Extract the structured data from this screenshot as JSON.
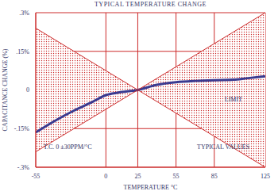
{
  "chart_data": {
    "type": "line",
    "title": "TYPICAL TEMPERATURE CHANGE",
    "x_label": "TEMPERATURE °C",
    "y_label": "CAPACITANCE CHANGE (%)",
    "annotations": [
      "T.C. 0 ±30PPM/°C"
    ],
    "xlim": [
      -55,
      125
    ],
    "xticks": [
      -55,
      0,
      25,
      55,
      85,
      125
    ],
    "ylim": [
      -0.3,
      0.3
    ],
    "yticks": [
      {
        "value": -0.3,
        "label": "-.3%"
      },
      {
        "value": -0.15,
        "label": "-.15%"
      },
      0,
      {
        "value": 0.15,
        "label": ".15%"
      },
      {
        "value": 0.3,
        "label": ".3%"
      }
    ],
    "grid": true,
    "series": [
      {
        "name": "TYPICAL VALUES",
        "type": "line",
        "color": "#3a3a90",
        "x": [
          -55,
          -40,
          -25,
          -10,
          0,
          10,
          25,
          40,
          55,
          70,
          85,
          100,
          110,
          125
        ],
        "values": [
          -0.165,
          -0.12,
          -0.08,
          -0.045,
          -0.02,
          -0.01,
          0,
          0.02,
          0.03,
          0.035,
          0.038,
          0.04,
          0.045,
          0.053
        ]
      },
      {
        "name": "LIMIT",
        "type": "area",
        "color": "#cc2a2a",
        "x": [
          -55,
          25,
          125
        ],
        "upper": [
          0.24,
          0,
          0.3
        ],
        "lower": [
          -0.24,
          0,
          -0.3
        ]
      }
    ]
  }
}
